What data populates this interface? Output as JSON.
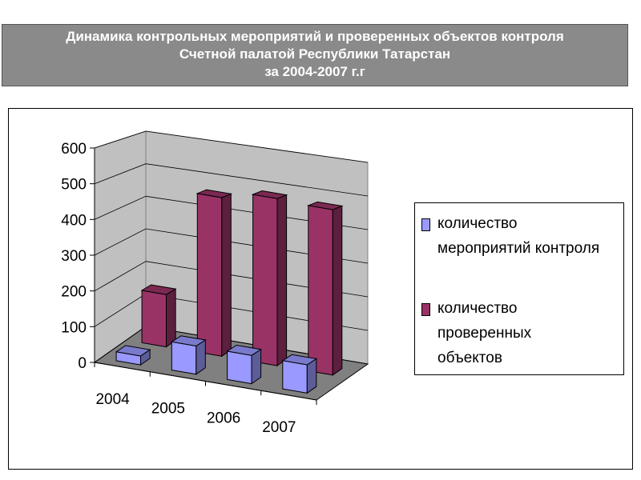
{
  "header": {
    "title_lines": [
      "Динамика контрольных мероприятий и проверенных объектов контроля",
      "Счетной палатой Республики Татарстан",
      "за 2004-2007 г.г"
    ]
  },
  "legend": {
    "items": [
      {
        "lines": [
          "количество",
          "мероприятий контроля"
        ],
        "color": "#9999ff"
      },
      {
        "lines": [
          "количество",
          "проверенных",
          "объектов"
        ],
        "color": "#993366"
      }
    ]
  },
  "chart_data": {
    "type": "bar",
    "categories": [
      "2004",
      "2005",
      "2006",
      "2007"
    ],
    "series": [
      {
        "name": "количество мероприятий контроля",
        "values": [
          25,
          80,
          80,
          80
        ],
        "color": "#9999ff"
      },
      {
        "name": "количество проверенных объектов",
        "values": [
          155,
          470,
          495,
          490
        ],
        "color": "#993366"
      }
    ],
    "ylim": [
      0,
      600
    ],
    "yticks": [
      "0",
      "100",
      "200",
      "300",
      "400",
      "500",
      "600"
    ],
    "grid": true,
    "legend_position": "right",
    "three_d": true
  }
}
